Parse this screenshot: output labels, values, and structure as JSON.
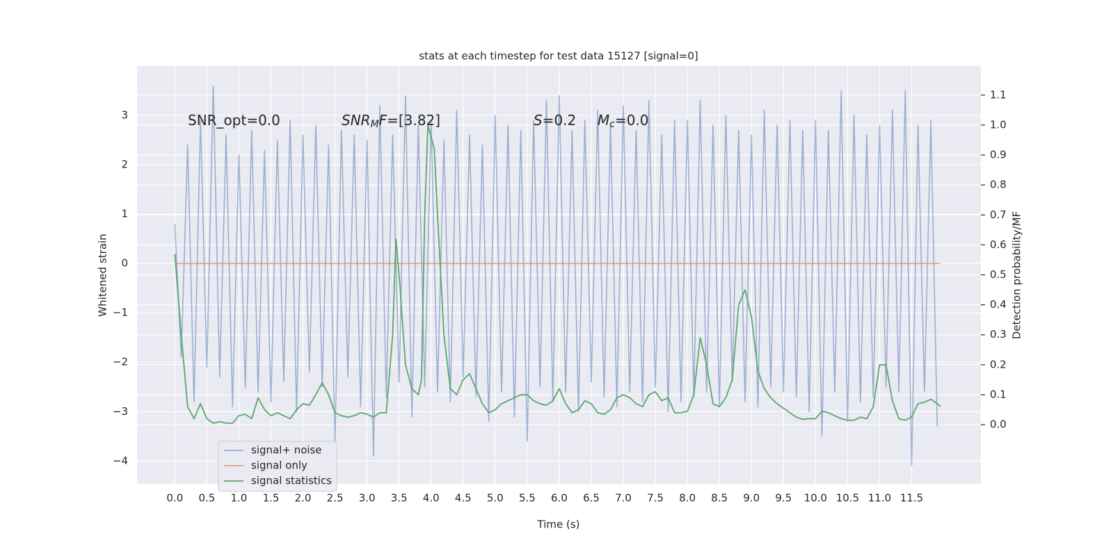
{
  "chart_data": {
    "type": "line",
    "title": "stats at each timestep for test data 15127 [signal=0]",
    "x_label": "Time (s)",
    "y_label": "Whitened strain",
    "y2_label": "Detection probability/MF",
    "annotations": [
      [
        "SNR_opt=0.0"
      ],
      [
        "SNR",
        "M",
        "F",
        "=[3.82]"
      ],
      [
        "S",
        "=0.2"
      ],
      [
        "M",
        "c",
        "=0.0"
      ]
    ],
    "grid": true,
    "legend": "lower left",
    "xlim": [
      -0.59,
      12.58
    ],
    "ylim": [
      -4.46,
      4.0
    ],
    "y2lim": [
      -0.197,
      1.197
    ],
    "xticks": [
      {
        "value": 0,
        "label": "0.0"
      },
      0.5,
      {
        "value": 1,
        "label": "1.0"
      },
      1.5,
      {
        "value": 2,
        "label": "2.0"
      },
      2.5,
      {
        "value": 3,
        "label": "3.0"
      },
      3.5,
      {
        "value": 4,
        "label": "4.0"
      },
      4.5,
      {
        "value": 5,
        "label": "5.0"
      },
      5.5,
      {
        "value": 6,
        "label": "6.0"
      },
      6.5,
      {
        "value": 7,
        "label": "7.0"
      },
      7.5,
      {
        "value": 8,
        "label": "8.0"
      },
      8.5,
      {
        "value": 9,
        "label": "9.0"
      },
      9.5,
      {
        "value": 10,
        "label": "10.0"
      },
      10.5,
      {
        "value": 11,
        "label": "11.0"
      },
      11.5
    ],
    "yticks": [
      {
        "value": -4,
        "label": "−4"
      },
      {
        "value": -3,
        "label": "−3"
      },
      {
        "value": -2,
        "label": "−2"
      },
      {
        "value": -1,
        "label": "−1"
      },
      0,
      1,
      2,
      3
    ],
    "y2ticks": [
      {
        "value": 0,
        "label": "0.0"
      },
      0.1,
      0.2,
      0.3,
      0.4,
      0.5,
      0.6,
      0.7,
      0.8,
      0.9,
      {
        "value": 1,
        "label": "1.0"
      },
      1.1
    ],
    "series": [
      {
        "name": "signal+ noise",
        "color": "#4c72b0",
        "opacity": 0.5,
        "x": [
          0,
          0.1,
          0.2,
          0.3,
          0.4,
          0.5,
          0.6,
          0.7,
          0.8,
          0.9,
          1,
          1.1,
          1.2,
          1.3,
          1.4,
          1.5,
          1.6,
          1.7,
          1.8,
          1.9,
          2,
          2.1,
          2.2,
          2.3,
          2.4,
          2.5,
          2.6,
          2.7,
          2.8,
          2.9,
          3,
          3.1,
          3.2,
          3.3,
          3.4,
          3.5,
          3.6,
          3.7,
          3.8,
          3.9,
          4,
          4.1,
          4.2,
          4.3,
          4.4,
          4.5,
          4.6,
          4.7,
          4.8,
          4.9,
          5,
          5.1,
          5.2,
          5.3,
          5.4,
          5.5,
          5.6,
          5.7,
          5.8,
          5.9,
          6,
          6.1,
          6.2,
          6.3,
          6.4,
          6.5,
          6.6,
          6.7,
          6.8,
          6.9,
          7,
          7.1,
          7.2,
          7.3,
          7.4,
          7.5,
          7.6,
          7.7,
          7.8,
          7.9,
          8,
          8.1,
          8.2,
          8.3,
          8.4,
          8.5,
          8.6,
          8.7,
          8.8,
          8.9,
          9,
          9.1,
          9.2,
          9.3,
          9.4,
          9.5,
          9.6,
          9.7,
          9.8,
          9.9,
          10,
          10.1,
          10.2,
          10.3,
          10.4,
          10.5,
          10.6,
          10.7,
          10.8,
          10.9,
          11,
          11.1,
          11.2,
          11.3,
          11.4,
          11.5,
          11.6,
          11.7,
          11.8,
          11.9
        ],
        "values": [
          0.8,
          -1.9,
          2.4,
          -2.8,
          2.9,
          -2.1,
          3.6,
          -2.3,
          2.6,
          -2.9,
          2.2,
          -2.5,
          2.7,
          -2.6,
          2.3,
          -2.8,
          2.5,
          -2.4,
          2.9,
          -3.0,
          2.6,
          -2.2,
          2.8,
          -2.5,
          2.4,
          -3.6,
          2.7,
          -2.3,
          2.6,
          -2.9,
          2.5,
          -3.9,
          3.2,
          -2.7,
          2.6,
          -2.4,
          3.4,
          -3.1,
          2.8,
          -2.5,
          2.9,
          -2.6,
          2.5,
          -2.8,
          3.1,
          -2.3,
          2.6,
          -2.7,
          2.4,
          -3.2,
          3.0,
          -2.6,
          2.8,
          -3.1,
          2.7,
          -3.6,
          2.9,
          -2.5,
          3.3,
          -2.8,
          3.4,
          -2.6,
          2.7,
          -3.0,
          2.9,
          -2.4,
          3.1,
          -2.7,
          2.8,
          -2.9,
          3.2,
          -2.6,
          2.7,
          -2.8,
          3.3,
          -2.5,
          2.6,
          -3.0,
          2.9,
          -2.8,
          2.9,
          -2.7,
          3.3,
          -2.6,
          2.8,
          -2.9,
          3.0,
          -2.4,
          2.7,
          -2.8,
          2.6,
          -2.9,
          3.1,
          -2.5,
          2.8,
          -2.6,
          2.9,
          -2.7,
          2.7,
          -3.0,
          2.9,
          -3.5,
          2.7,
          -2.6,
          3.5,
          -3.2,
          3.0,
          -2.8,
          2.6,
          -2.7,
          2.8,
          -2.5,
          3.1,
          -2.6,
          3.5,
          -4.1,
          2.8,
          -2.6,
          2.9,
          -3.3
        ]
      },
      {
        "name": "signal only",
        "color": "#dd8452",
        "opacity": 0.7,
        "x": [
          0,
          11.95
        ],
        "values": [
          0,
          0
        ]
      },
      {
        "name": "signal statistics",
        "color": "#55a868",
        "opacity": 1,
        "axis": "y2",
        "x": [
          0,
          0.1,
          0.2,
          0.3,
          0.4,
          0.5,
          0.6,
          0.7,
          0.8,
          0.9,
          1,
          1.1,
          1.2,
          1.3,
          1.4,
          1.5,
          1.6,
          1.7,
          1.8,
          1.9,
          2,
          2.1,
          2.2,
          2.3,
          2.4,
          2.5,
          2.6,
          2.7,
          2.8,
          2.9,
          3,
          3.1,
          3.2,
          3.3,
          3.4,
          3.45,
          3.5,
          3.6,
          3.7,
          3.8,
          3.85,
          3.9,
          3.95,
          4.05,
          4.1,
          4.2,
          4.3,
          4.4,
          4.5,
          4.6,
          4.7,
          4.8,
          4.9,
          5,
          5.1,
          5.2,
          5.3,
          5.4,
          5.5,
          5.6,
          5.7,
          5.8,
          5.9,
          6,
          6.1,
          6.2,
          6.3,
          6.4,
          6.5,
          6.6,
          6.7,
          6.8,
          6.9,
          7,
          7.1,
          7.2,
          7.3,
          7.4,
          7.5,
          7.6,
          7.7,
          7.8,
          7.9,
          8,
          8.1,
          8.2,
          8.3,
          8.4,
          8.5,
          8.6,
          8.7,
          8.8,
          8.9,
          9,
          9.1,
          9.2,
          9.3,
          9.4,
          9.5,
          9.6,
          9.7,
          9.8,
          9.9,
          10,
          10.1,
          10.2,
          10.3,
          10.4,
          10.5,
          10.6,
          10.7,
          10.8,
          10.9,
          11,
          11.1,
          11.2,
          11.3,
          11.4,
          11.5,
          11.6,
          11.7,
          11.8,
          11.9,
          11.95
        ],
        "values": [
          0.57,
          0.3,
          0.06,
          0.02,
          0.07,
          0.02,
          0.005,
          0.01,
          0.005,
          0.005,
          0.03,
          0.035,
          0.02,
          0.09,
          0.05,
          0.03,
          0.04,
          0.03,
          0.02,
          0.05,
          0.07,
          0.065,
          0.1,
          0.14,
          0.1,
          0.04,
          0.03,
          0.025,
          0.03,
          0.04,
          0.035,
          0.025,
          0.04,
          0.04,
          0.3,
          0.62,
          0.5,
          0.2,
          0.12,
          0.1,
          0.15,
          0.7,
          1.0,
          0.92,
          0.7,
          0.3,
          0.12,
          0.1,
          0.15,
          0.17,
          0.12,
          0.07,
          0.04,
          0.05,
          0.07,
          0.08,
          0.09,
          0.1,
          0.1,
          0.08,
          0.07,
          0.065,
          0.08,
          0.12,
          0.07,
          0.04,
          0.05,
          0.08,
          0.07,
          0.04,
          0.035,
          0.05,
          0.09,
          0.1,
          0.09,
          0.07,
          0.06,
          0.1,
          0.11,
          0.08,
          0.09,
          0.04,
          0.04,
          0.045,
          0.1,
          0.29,
          0.2,
          0.07,
          0.06,
          0.09,
          0.15,
          0.4,
          0.45,
          0.36,
          0.18,
          0.12,
          0.09,
          0.07,
          0.055,
          0.04,
          0.025,
          0.018,
          0.02,
          0.02,
          0.045,
          0.04,
          0.03,
          0.02,
          0.015,
          0.015,
          0.025,
          0.02,
          0.06,
          0.2,
          0.2,
          0.08,
          0.02,
          0.015,
          0.025,
          0.07,
          0.075,
          0.085,
          0.07,
          0.06
        ]
      }
    ]
  }
}
